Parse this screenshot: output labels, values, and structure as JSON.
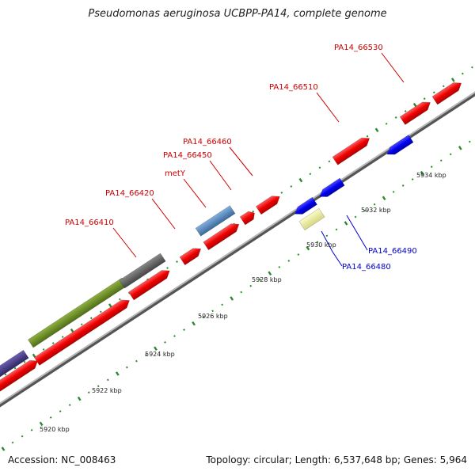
{
  "title": "Pseudomonas aeruginosa UCBPP-PA14, complete genome",
  "footer": {
    "accession": "Accession: NC_008463",
    "summary": "Topology: circular; Length: 6,537,648 bp; Genes: 5,964"
  },
  "colors": {
    "backbone": "#8a8a8a",
    "plus_strand_cds": "#ff0000",
    "minus_strand_cds": "#0000ee",
    "tick": "#2a8a2a",
    "label_plus": "#cc0000",
    "label_minus": "#0000cc",
    "rna": "#5588bb",
    "pseudo": "#eeee99",
    "other_gray": "#666666",
    "other_green": "#6b8e23",
    "other_purple": "#4b3f8a"
  },
  "ruler": {
    "ticks": [
      {
        "label": "5920 kbp",
        "pos": 5920
      },
      {
        "label": "5922 kbp",
        "pos": 5922
      },
      {
        "label": "5924 kbp",
        "pos": 5924
      },
      {
        "label": "5926 kbp",
        "pos": 5926
      },
      {
        "label": "5928 kbp",
        "pos": 5928
      },
      {
        "label": "5930 kbp",
        "pos": 5930
      },
      {
        "label": "5932 kbp",
        "pos": 5932
      },
      {
        "label": "5934 kbp",
        "pos": 5934
      }
    ]
  },
  "gene_labels_top": [
    {
      "label": "PA14_66410"
    },
    {
      "label": "PA14_66420"
    },
    {
      "label": "metY"
    },
    {
      "label": "PA14_66450"
    },
    {
      "label": "PA14_66460"
    },
    {
      "label": "PA14_66510"
    },
    {
      "label": "PA14_66530"
    }
  ],
  "gene_labels_bottom": [
    {
      "label": "PA14_66490"
    },
    {
      "label": "PA14_66480"
    }
  ]
}
